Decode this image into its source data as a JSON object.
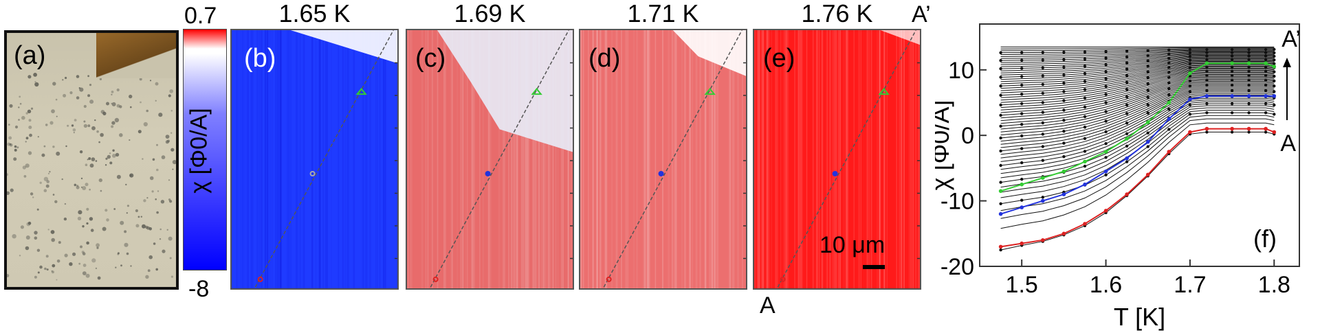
{
  "panels": {
    "a": {
      "label": "(a)"
    },
    "b": {
      "label": "(b)",
      "temperature": "1.65 K",
      "fill": "#1f3bff",
      "phase": 0.0
    },
    "c": {
      "label": "(c)",
      "temperature": "1.69 K",
      "fill": "#e86b6b",
      "phase": 0.55
    },
    "d": {
      "label": "(d)",
      "temperature": "1.71 K",
      "fill": "#ec6f6f",
      "phase": 0.85
    },
    "e": {
      "label": "(e)",
      "temperature": "1.76 K",
      "fill": "#ff1a1a",
      "phase": 1.0
    }
  },
  "colorbar": {
    "top": "0.7",
    "zero": "0",
    "bottom": "-8",
    "label": "χ [Φ0/A]",
    "colors": [
      "#ff0000",
      "#ffffff",
      "#0000ff"
    ]
  },
  "markers": {
    "A": "A",
    "A_prime": "A’"
  },
  "scale_bar": {
    "text": "10 μm"
  },
  "chart_data": {
    "type": "line",
    "panel_label": "(f)",
    "xlabel": "T [K]",
    "ylabel": "χ [Φ0/A]",
    "xlim": [
      1.45,
      1.83
    ],
    "ylim": [
      -20,
      17
    ],
    "xticks": [
      "1.5",
      "1.6",
      "1.7",
      "1.8"
    ],
    "yticks": [
      "-20",
      "-10",
      "0",
      "10"
    ],
    "arrow_top": "A’",
    "arrow_bottom": "A",
    "x": [
      1.475,
      1.5,
      1.525,
      1.55,
      1.575,
      1.6,
      1.625,
      1.65,
      1.675,
      1.7,
      1.72,
      1.75,
      1.77,
      1.79,
      1.8
    ],
    "highlighted_series": [
      {
        "name": "green",
        "color": "#33cc33",
        "values": [
          -8.5,
          -7.5,
          -6.5,
          -5.5,
          -4.0,
          -2.5,
          -0.5,
          2.0,
          5.0,
          9.5,
          11.0,
          11.0,
          11.0,
          11.0,
          10.5
        ]
      },
      {
        "name": "blue",
        "color": "#2233dd",
        "values": [
          -12.0,
          -11.0,
          -10.0,
          -9.0,
          -7.5,
          -5.5,
          -3.5,
          -1.0,
          2.5,
          5.5,
          6.0,
          6.0,
          6.0,
          6.0,
          6.0
        ]
      },
      {
        "name": "red",
        "color": "#dd2222",
        "values": [
          -17.0,
          -16.5,
          -16.0,
          -15.0,
          -13.5,
          -11.5,
          -9.0,
          -6.0,
          -2.5,
          0.5,
          1.0,
          1.0,
          1.0,
          1.0,
          0.5
        ]
      }
    ],
    "family_bottom": [
      -17.5,
      -16.8,
      -16.2,
      -15.2,
      -13.8,
      -11.8,
      -9.2,
      -6.2,
      -2.8,
      0.2,
      0.5,
      0.5,
      0.5,
      0.5,
      0.2
    ],
    "family_top": [
      13.5,
      13.5,
      13.5,
      13.5,
      13.5,
      13.5,
      13.5,
      13.5,
      13.5,
      13.5,
      13.5,
      13.5,
      13.5,
      13.5,
      13.5
    ],
    "family_count": 60
  }
}
